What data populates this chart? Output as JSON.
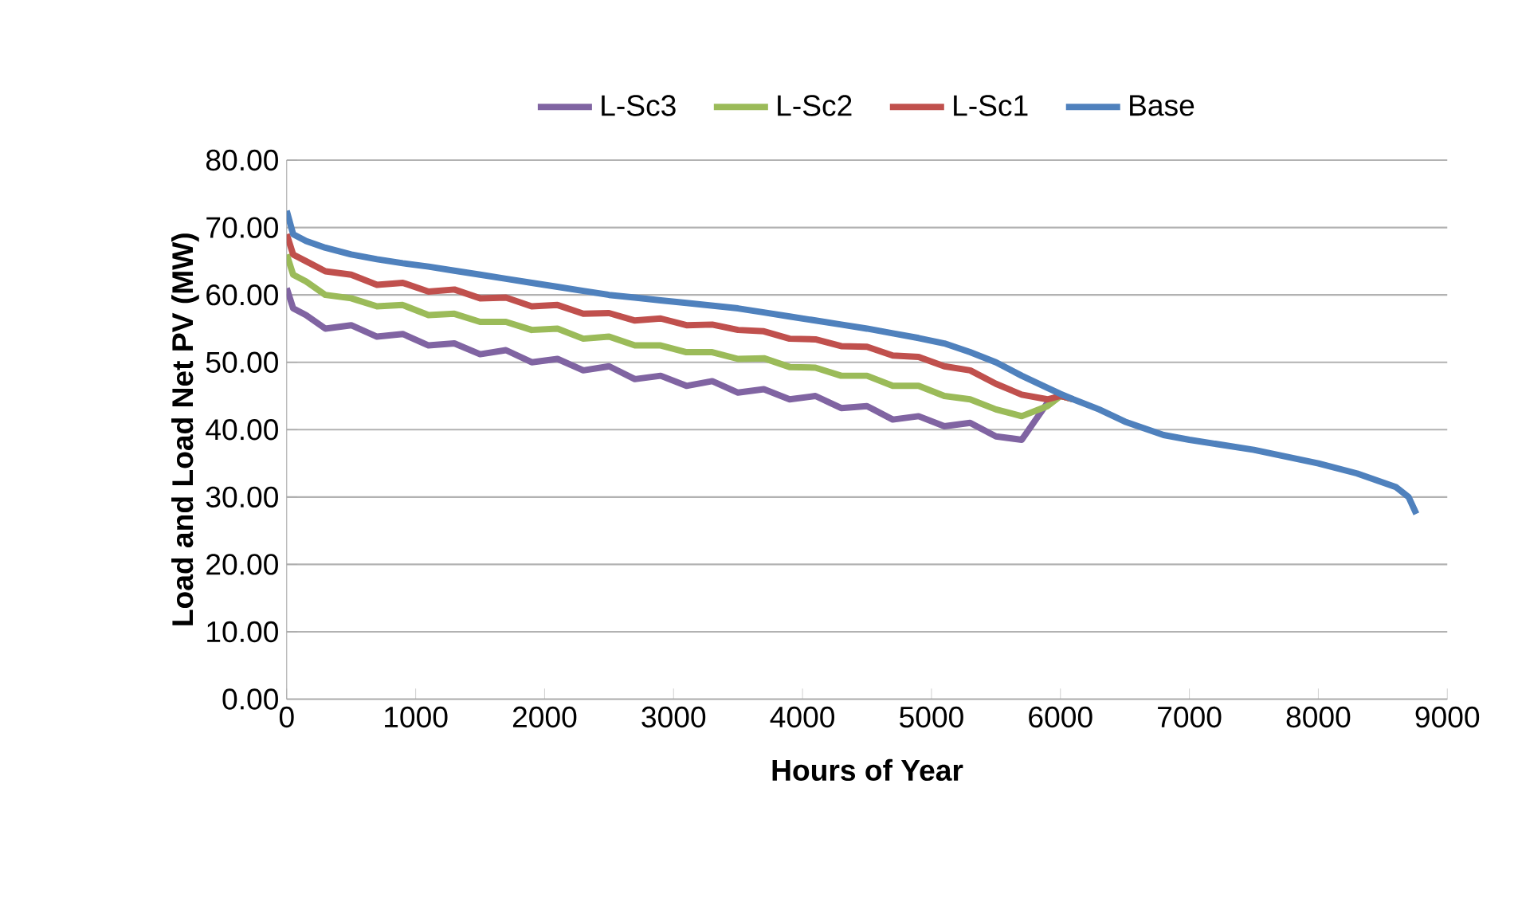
{
  "chart_data": {
    "type": "line",
    "xlabel": "Hours of Year",
    "ylabel": "Load and Load Net PV (MW)",
    "x": [
      0,
      50,
      150,
      300,
      500,
      700,
      900,
      1100,
      1300,
      1500,
      1700,
      1900,
      2100,
      2300,
      2500,
      2700,
      2900,
      3100,
      3300,
      3500,
      3700,
      3900,
      4100,
      4300,
      4500,
      4700,
      4900,
      5100,
      5300,
      5500,
      5700,
      5900,
      6000,
      6100,
      6300,
      6500,
      6800,
      7000,
      7500,
      8000,
      8300,
      8600,
      8700,
      8760
    ],
    "series": [
      {
        "name": "L-Sc3",
        "color": "#8064a2",
        "values": [
          61,
          58,
          57,
          55,
          55.5,
          53.8,
          54.2,
          52.5,
          52.8,
          51.2,
          51.8,
          50,
          50.5,
          48.8,
          49.4,
          47.5,
          48,
          46.5,
          47.2,
          45.5,
          46,
          44.5,
          45,
          43.2,
          43.5,
          41.5,
          42,
          40.5,
          41,
          39,
          38.5,
          44,
          45,
          44.5,
          null,
          null,
          null,
          null,
          null,
          null,
          null,
          null,
          null,
          null
        ]
      },
      {
        "name": "L-Sc2",
        "color": "#9bbb59",
        "values": [
          66,
          63,
          62,
          60,
          59.5,
          58.3,
          58.5,
          57,
          57.2,
          56,
          56,
          54.8,
          55,
          53.5,
          53.8,
          52.5,
          52.5,
          51.5,
          51.5,
          50.5,
          50.6,
          49.3,
          49.2,
          48,
          48,
          46.5,
          46.5,
          45,
          44.5,
          43,
          42,
          43.5,
          45,
          44.5,
          null,
          null,
          null,
          null,
          null,
          null,
          null,
          null,
          null,
          null
        ]
      },
      {
        "name": "L-Sc1",
        "color": "#c0504d",
        "values": [
          69,
          66,
          65,
          63.5,
          63,
          61.5,
          61.8,
          60.5,
          60.8,
          59.5,
          59.6,
          58.3,
          58.5,
          57.2,
          57.3,
          56.2,
          56.5,
          55.5,
          55.6,
          54.8,
          54.6,
          53.5,
          53.4,
          52.4,
          52.3,
          51,
          50.8,
          49.4,
          48.8,
          46.8,
          45.2,
          44.5,
          45,
          44.5,
          null,
          null,
          null,
          null,
          null,
          null,
          null,
          null,
          null,
          null
        ]
      },
      {
        "name": "Base",
        "color": "#4f81bd",
        "values": [
          72.5,
          69,
          68,
          67,
          66,
          65.3,
          64.7,
          64.2,
          63.6,
          63,
          62.4,
          61.8,
          61.2,
          60.6,
          60,
          59.6,
          59.2,
          58.8,
          58.4,
          58,
          57.4,
          56.8,
          56.2,
          55.6,
          55,
          54.3,
          53.6,
          52.8,
          51.5,
          50,
          48,
          46.2,
          45.3,
          44.5,
          43,
          41.2,
          39.2,
          38.5,
          37,
          35,
          33.5,
          31.5,
          30,
          27.5
        ]
      }
    ],
    "xlim": [
      0,
      9000
    ],
    "xticks": [
      0,
      1000,
      2000,
      3000,
      4000,
      5000,
      6000,
      7000,
      8000,
      9000
    ],
    "ylim": [
      0,
      80
    ],
    "yticks": [
      {
        "value": 0,
        "label": "0.00"
      },
      {
        "value": 10,
        "label": "10.00"
      },
      {
        "value": 20,
        "label": "20.00"
      },
      {
        "value": 30,
        "label": "30.00"
      },
      {
        "value": 40,
        "label": "40.00"
      },
      {
        "value": 50,
        "label": "50.00"
      },
      {
        "value": 60,
        "label": "60.00"
      },
      {
        "value": 70,
        "label": "70.00"
      },
      {
        "value": 80,
        "label": "80.00"
      }
    ],
    "grid": "y",
    "legend": "top",
    "marker": "none",
    "line_style": "solid"
  }
}
